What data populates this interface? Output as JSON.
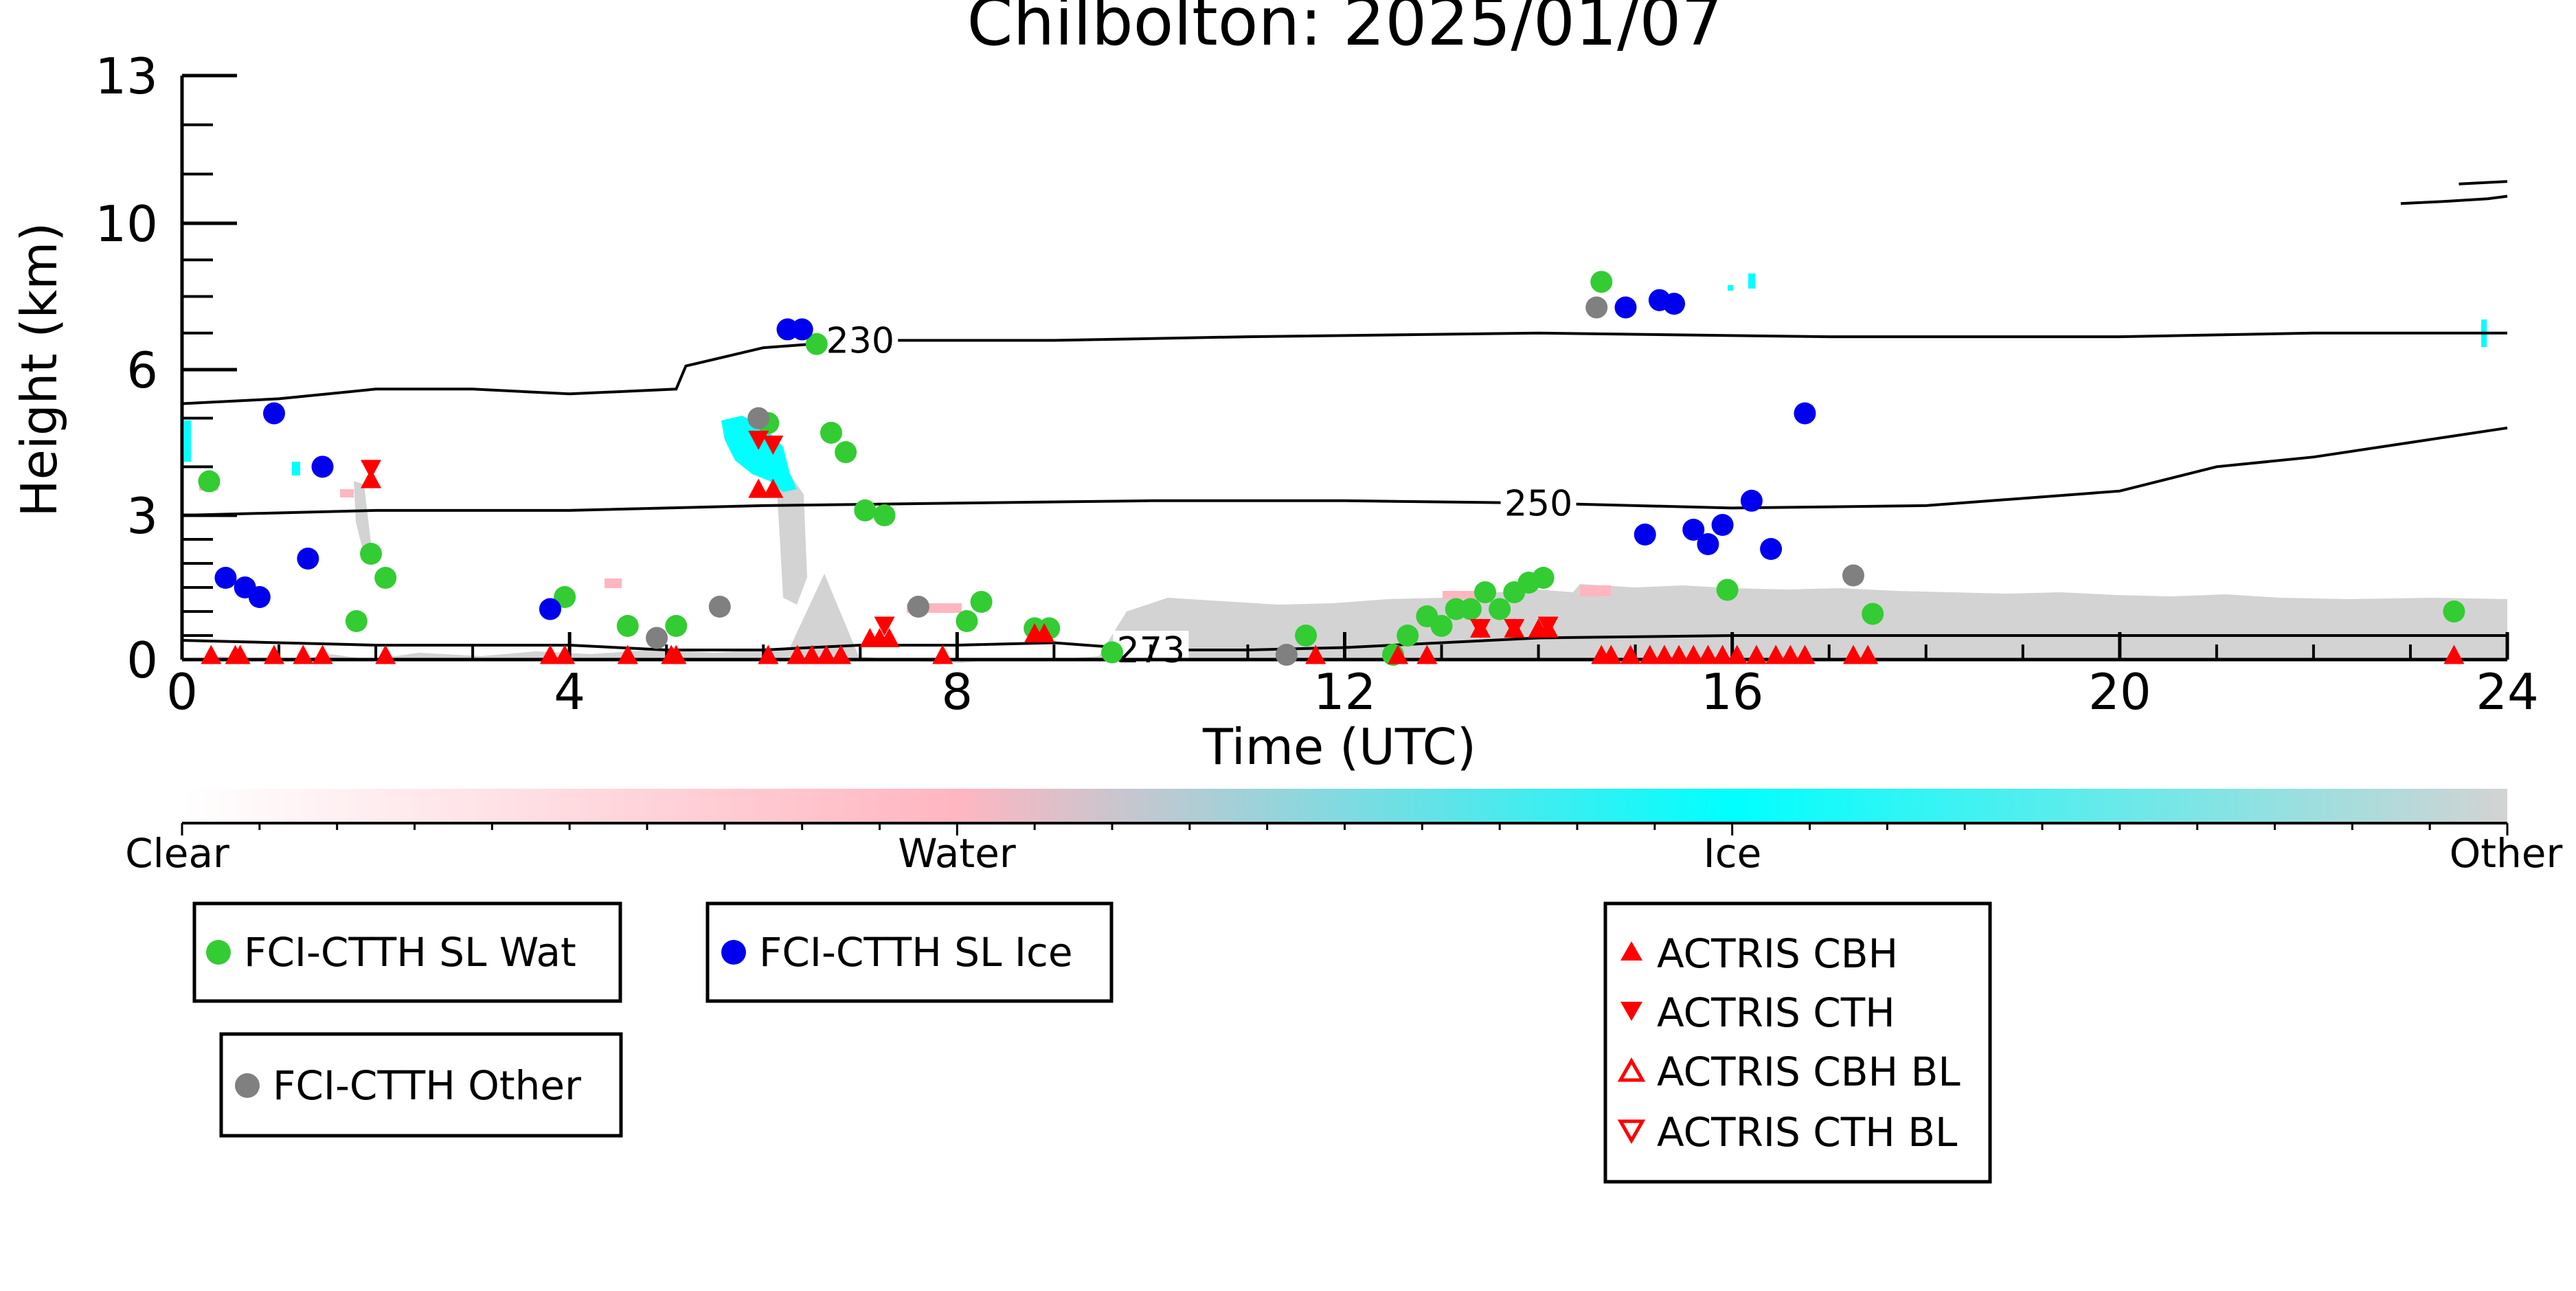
{
  "chart_data": {
    "type": "scatter",
    "title": "Chilbolton: 2025/01/07",
    "xlabel": "Time (UTC)",
    "ylabel": "Height (km)",
    "xlim": [
      0,
      24
    ],
    "ylim_display": [
      0,
      13
    ],
    "y_scale": "nonlinear",
    "x_ticks": [
      "0",
      "4",
      "8",
      "12",
      "16",
      "20",
      "24"
    ],
    "y_ticks": [
      "0",
      "3",
      "6",
      "10",
      "13"
    ],
    "grid": false,
    "colorbar": {
      "labels": [
        "Clear",
        "Water",
        "Ice",
        "Other"
      ],
      "colors": [
        "#ffffff",
        "#ffb6c1",
        "#00ffff",
        "#d3d3d3"
      ]
    },
    "contours": [
      {
        "label": "230",
        "points": [
          [
            0,
            5.3
          ],
          [
            1,
            5.4
          ],
          [
            2,
            5.6
          ],
          [
            3,
            5.6
          ],
          [
            4,
            5.5
          ],
          [
            5.1,
            5.6
          ],
          [
            5.2,
            6.1
          ],
          [
            6,
            6.6
          ],
          [
            7,
            6.8
          ],
          [
            9,
            6.8
          ],
          [
            11,
            6.9
          ],
          [
            14,
            7.0
          ],
          [
            17,
            6.9
          ],
          [
            20,
            6.9
          ],
          [
            22,
            7.0
          ],
          [
            24,
            7.0
          ]
        ]
      },
      {
        "label": "250",
        "points": [
          [
            0,
            3.0
          ],
          [
            2,
            3.1
          ],
          [
            4,
            3.1
          ],
          [
            6,
            3.2
          ],
          [
            8,
            3.25
          ],
          [
            10,
            3.3
          ],
          [
            12,
            3.3
          ],
          [
            14,
            3.25
          ],
          [
            16,
            3.15
          ],
          [
            18,
            3.2
          ],
          [
            20,
            3.5
          ],
          [
            21,
            4.0
          ],
          [
            22,
            4.2
          ],
          [
            23,
            4.5
          ],
          [
            24,
            4.8
          ]
        ]
      },
      {
        "label": "273",
        "points": [
          [
            0,
            0.4
          ],
          [
            2,
            0.3
          ],
          [
            4,
            0.3
          ],
          [
            5,
            0.2
          ],
          [
            6,
            0.2
          ],
          [
            7,
            0.3
          ],
          [
            8,
            0.3
          ],
          [
            9,
            0.35
          ],
          [
            10,
            0.2
          ],
          [
            11,
            0.2
          ],
          [
            12,
            0.25
          ],
          [
            13,
            0.35
          ],
          [
            14,
            0.45
          ],
          [
            16,
            0.5
          ],
          [
            20,
            0.5
          ],
          [
            24,
            0.5
          ]
        ]
      },
      {
        "label": "",
        "points": [
          [
            22.9,
            10.4
          ],
          [
            23.4,
            10.45
          ],
          [
            23.8,
            10.5
          ],
          [
            24,
            10.55
          ]
        ]
      },
      {
        "label": "",
        "points": [
          [
            23.5,
            10.8
          ],
          [
            24,
            10.85
          ]
        ]
      }
    ],
    "series": [
      {
        "name": "FCI-CTTH SL Wat",
        "color": "#33cc33",
        "marker": "circle",
        "x": [
          0.28,
          1.8,
          1.95,
          2.1,
          3.95,
          4.6,
          5.1,
          6.05,
          6.55,
          6.7,
          6.85,
          7.05,
          7.25,
          8.1,
          8.25,
          8.8,
          8.95,
          9.6,
          11.6,
          12.5,
          12.65,
          12.85,
          13.0,
          13.15,
          13.3,
          13.45,
          13.6,
          13.75,
          13.9,
          14.05,
          14.65,
          15.95,
          17.45,
          23.45
        ],
        "y": [
          3.7,
          0.8,
          2.2,
          1.7,
          1.3,
          0.7,
          0.7,
          4.9,
          6.7,
          4.7,
          4.3,
          3.1,
          3.0,
          0.8,
          1.2,
          0.65,
          0.65,
          0.15,
          0.5,
          0.1,
          0.5,
          0.9,
          0.7,
          1.05,
          1.05,
          1.4,
          1.05,
          1.4,
          1.6,
          1.7,
          8.4,
          1.45,
          0.95,
          1.0
        ]
      },
      {
        "name": "FCI-CTTH SL Ice",
        "color": "#0000ee",
        "marker": "circle",
        "x": [
          0.45,
          0.65,
          0.8,
          0.95,
          1.3,
          1.45,
          3.8,
          6.25,
          6.4,
          14.9,
          15.1,
          15.25,
          15.4,
          15.6,
          15.75,
          15.9,
          16.2,
          16.4,
          16.75
        ],
        "y": [
          1.7,
          1.5,
          1.3,
          5.1,
          2.1,
          4.0,
          1.05,
          7.1,
          7.1,
          7.7,
          2.6,
          7.9,
          7.8,
          2.7,
          2.4,
          2.8,
          3.3,
          2.3,
          5.1
        ]
      },
      {
        "name": "FCI-CTTH Other",
        "color": "#808080",
        "marker": "circle",
        "x": [
          4.9,
          5.55,
          5.95,
          7.6,
          11.4,
          14.6,
          17.25
        ],
        "y": [
          0.45,
          1.1,
          5.0,
          1.1,
          0.1,
          7.7,
          1.75
        ]
      },
      {
        "name": "ACTRIS CBH",
        "color": "#ff0000",
        "marker": "triangle-up",
        "x": [
          0.3,
          0.55,
          0.6,
          0.95,
          1.25,
          1.45,
          1.95,
          2.1,
          3.8,
          3.95,
          4.6,
          5.05,
          5.1,
          5.95,
          6.05,
          6.1,
          6.35,
          6.5,
          6.65,
          6.8,
          7.1,
          7.2,
          7.3,
          7.85,
          8.8,
          8.9,
          11.7,
          12.55,
          12.85,
          13.4,
          13.75,
          14.0,
          14.1,
          14.65,
          14.75,
          14.95,
          15.15,
          15.3,
          15.45,
          15.6,
          15.75,
          15.9,
          16.05,
          16.25,
          16.45,
          16.6,
          16.75,
          17.25,
          17.4,
          23.45
        ],
        "y": [
          0.05,
          0.05,
          0.05,
          0.05,
          0.05,
          0.05,
          3.7,
          0.05,
          0.05,
          0.05,
          0.05,
          0.05,
          0.05,
          3.5,
          0.05,
          3.5,
          0.05,
          0.05,
          0.05,
          0.05,
          0.4,
          0.4,
          0.4,
          0.05,
          0.5,
          0.5,
          0.05,
          0.05,
          0.05,
          0.6,
          0.6,
          0.6,
          0.6,
          0.05,
          0.05,
          0.05,
          0.05,
          0.05,
          0.05,
          0.05,
          0.05,
          0.05,
          0.05,
          0.05,
          0.05,
          0.05,
          0.05,
          0.05,
          0.05,
          0.05
        ]
      },
      {
        "name": "ACTRIS CTH",
        "color": "#ff0000",
        "marker": "triangle-down",
        "x": [
          1.95,
          5.95,
          6.1,
          7.25,
          13.4,
          13.75,
          14.1
        ],
        "y": [
          4.0,
          4.6,
          4.5,
          0.75,
          0.7,
          0.7,
          0.75
        ]
      },
      {
        "name": "ACTRIS CBH BL",
        "color": "#ff0000",
        "marker": "triangle-up-open",
        "x": [],
        "y": []
      },
      {
        "name": "ACTRIS CTH BL",
        "color": "#ff0000",
        "marker": "triangle-down-open",
        "x": [],
        "y": []
      }
    ],
    "legend_boxes": [
      [
        "FCI-CTTH SL Wat"
      ],
      [
        "FCI-CTTH SL Ice"
      ],
      [
        "FCI-CTTH Other"
      ],
      [
        "ACTRIS CBH",
        "ACTRIS CTH",
        "ACTRIS CBH BL",
        "ACTRIS CTH BL"
      ]
    ]
  }
}
